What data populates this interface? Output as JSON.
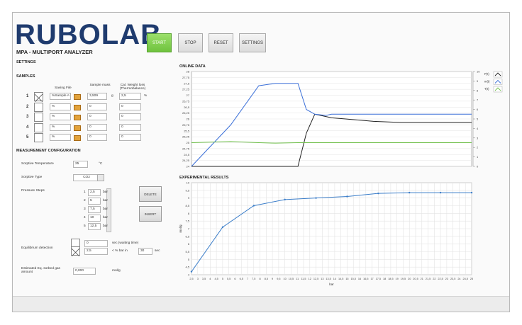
{
  "header": {
    "logo": "RUBOLAB",
    "subtitle": "MPA - MULTIPORT ANALYZER"
  },
  "buttons": [
    "START",
    "STOP",
    "RESET",
    "SETTINGS"
  ],
  "settings": {
    "title": "SETTINGS",
    "samples_title": "SAMPLES",
    "columns": [
      "Saving File",
      "Sample mass",
      "Cal. Weight loss (Thermobalance)"
    ],
    "rows": [
      {
        "index": "1",
        "checked": true,
        "file": "%Sample A",
        "mass": "3,509",
        "mass_unit": "g",
        "loss": "2,5",
        "loss_unit": "%"
      },
      {
        "index": "2",
        "checked": false,
        "file": "%",
        "mass": "0",
        "loss": "0"
      },
      {
        "index": "3",
        "checked": false,
        "file": "%",
        "mass": "0",
        "loss": "0"
      },
      {
        "index": "4",
        "checked": false,
        "file": "%",
        "mass": "0",
        "loss": "0"
      },
      {
        "index": "5",
        "checked": false,
        "file": "%",
        "mass": "0",
        "loss": "0"
      }
    ]
  },
  "measurement": {
    "title": "MEASUREMENT CONFIGURATION",
    "temperature": {
      "label": "Sorptive Temperature",
      "value": "25",
      "unit": "°C"
    },
    "sorptive": {
      "label": "Sorptive Type",
      "value": "CO2"
    },
    "pressure": {
      "label": "Pressure Steps",
      "unit": "bar",
      "delete": "DELETE",
      "insert": "INSERT",
      "steps": [
        {
          "index": "1",
          "value": "2,5"
        },
        {
          "index": "2",
          "value": "5"
        },
        {
          "index": "3",
          "value": "7,5"
        },
        {
          "index": "4",
          "value": "10"
        },
        {
          "index": "5",
          "value": "12,5"
        }
      ]
    },
    "equilibrium": {
      "label": "Equilibrium detection",
      "wait": "0",
      "wait_unit": "sec (waiting time)",
      "percent": "2,5",
      "percent_unit": "< % bar in",
      "time": "30",
      "time_unit": "sec"
    },
    "estimated": {
      "label": "Estimated Eq. sorbed gas amount",
      "value": "0,000",
      "unit": "mol/g"
    }
  },
  "chart_data": [
    {
      "type": "line",
      "title": "ONLINE DATA",
      "grid": true,
      "legend": "top-right",
      "markers": false,
      "x": [
        0,
        14,
        24,
        30,
        38,
        41,
        44,
        48,
        50,
        55,
        65,
        75,
        100
      ],
      "xlim": [
        0,
        100
      ],
      "ylim": [
        24,
        28
      ],
      "yticks": [
        24,
        {
          "value": 24.25,
          "label": "24,25"
        },
        {
          "value": 24.5,
          "label": "24,5"
        },
        {
          "value": 24.75,
          "label": "24,75"
        },
        25,
        {
          "value": 25.25,
          "label": "25,25"
        },
        {
          "value": 25.5,
          "label": "25,5"
        },
        {
          "value": 25.75,
          "label": "25,75"
        },
        26,
        {
          "value": 26.25,
          "label": "26,25"
        },
        {
          "value": 26.5,
          "label": "26,5"
        },
        {
          "value": 26.75,
          "label": "26,75"
        },
        27,
        {
          "value": 27.25,
          "label": "27,25"
        },
        {
          "value": 27.5,
          "label": "27,5"
        },
        {
          "value": 27.75,
          "label": "27,75"
        },
        28
      ],
      "y2lim": [
        0,
        10
      ],
      "y2ticks": [
        0,
        1,
        2,
        3,
        4,
        5,
        6,
        7,
        8,
        9,
        10
      ],
      "series": [
        {
          "name": "P(t)",
          "color": "#222222",
          "values": [
            24,
            24,
            24,
            24,
            24,
            25.4,
            26.2,
            26.1,
            26.05,
            26,
            25.9,
            25.85,
            25.85
          ]
        },
        {
          "name": "m(t)",
          "color": "#3a6fd8",
          "values": [
            24,
            25.75,
            27.4,
            27.5,
            27.5,
            26.4,
            26.2,
            26.15,
            26.2,
            26.2,
            26.2,
            26.2,
            26.2
          ]
        },
        {
          "name": "T(t)",
          "color": "#6fbf4a",
          "values": [
            25,
            25.05,
            25,
            24.98,
            25,
            25,
            25,
            25,
            25,
            25,
            25,
            25,
            25
          ]
        }
      ]
    },
    {
      "type": "line",
      "title": "EXPERIMENTAL RESULTS",
      "grid": true,
      "markers": true,
      "xlabel": "bar",
      "ylabel": "mol/g",
      "x": [
        2.5,
        5,
        7.5,
        10,
        12.5,
        15,
        17.5,
        20,
        22.5,
        25
      ],
      "xlim": [
        2.5,
        25
      ],
      "xticks": [
        {
          "value": 2.5,
          "label": "2,5"
        },
        3,
        {
          "value": 3.5,
          "label": "3,5"
        },
        4,
        {
          "value": 4.5,
          "label": "4,5"
        },
        5,
        {
          "value": 5.5,
          "label": "5,5"
        },
        6,
        {
          "value": 6.5,
          "label": "6,5"
        },
        7,
        {
          "value": 7.5,
          "label": "7,5"
        },
        8,
        {
          "value": 8.5,
          "label": "8,5"
        },
        9,
        {
          "value": 9.5,
          "label": "9,5"
        },
        10,
        {
          "value": 10.5,
          "label": "10,5"
        },
        11,
        {
          "value": 11.5,
          "label": "11,5"
        },
        12,
        {
          "value": 12.5,
          "label": "12,5"
        },
        13,
        {
          "value": 13.5,
          "label": "13,5"
        },
        14,
        {
          "value": 14.5,
          "label": "14,5"
        },
        15,
        {
          "value": 15.5,
          "label": "15,5"
        },
        16,
        {
          "value": 16.5,
          "label": "16,5"
        },
        17,
        {
          "value": 17.5,
          "label": "17,5"
        },
        18,
        {
          "value": 18.5,
          "label": "18,5"
        },
        19,
        {
          "value": 19.5,
          "label": "19,5"
        },
        20,
        {
          "value": 20.5,
          "label": "20,5"
        },
        21,
        {
          "value": 21.5,
          "label": "21,5"
        },
        22,
        {
          "value": 22.5,
          "label": "22,5"
        },
        23,
        {
          "value": 23.5,
          "label": "23,5"
        },
        24,
        {
          "value": 24.5,
          "label": "24,5"
        },
        25
      ],
      "ylim": [
        4,
        10
      ],
      "yticks": [
        4,
        {
          "value": 4.5,
          "label": "4,5"
        },
        5,
        {
          "value": 5.5,
          "label": "5,5"
        },
        6,
        {
          "value": 6.5,
          "label": "6,5"
        },
        7,
        {
          "value": 7.5,
          "label": "7,5"
        },
        8,
        {
          "value": 8.5,
          "label": "8,5"
        },
        9,
        {
          "value": 9.5,
          "label": "9,5"
        },
        10
      ],
      "series": [
        {
          "name": "mol/g",
          "color": "#3a7dc9",
          "values": [
            4.2,
            7.1,
            8.5,
            8.9,
            9.0,
            9.1,
            9.3,
            9.35,
            9.35,
            9.35
          ]
        }
      ]
    }
  ]
}
